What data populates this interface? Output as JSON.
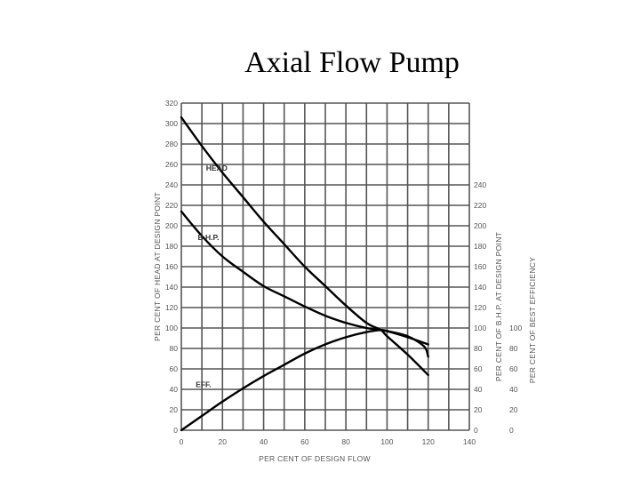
{
  "title": "Axial Flow Pump",
  "chart_data": {
    "type": "line",
    "title": "Axial Flow Pump",
    "xlabel": "PER CENT OF DESIGN FLOW",
    "ylabel_left": "PER CENT OF HEAD AT DESIGN POINT",
    "ylabel_right_bhp": "PER CENT OF B.H.P. AT DESIGN POINT",
    "ylabel_right_eff": "PER CENT OF BEST EFFICIENCY",
    "xlim": [
      0,
      140
    ],
    "ylim": [
      0,
      320
    ],
    "grid": true,
    "x_ticks": [
      0,
      20,
      40,
      60,
      80,
      100,
      120,
      140
    ],
    "y_left_ticks": [
      0,
      20,
      40,
      60,
      80,
      100,
      120,
      140,
      160,
      180,
      200,
      220,
      240,
      260,
      280,
      300,
      320
    ],
    "y_right_bhp_ticks": [
      0,
      20,
      40,
      60,
      80,
      100,
      120,
      140,
      160,
      180,
      200,
      220,
      240
    ],
    "y_right_eff_ticks": [
      0,
      20,
      40,
      60,
      80,
      100
    ],
    "series": [
      {
        "name": "HEAD",
        "label": "HEAD",
        "label_pos": [
          12,
          254
        ],
        "x": [
          0,
          10,
          20,
          30,
          40,
          50,
          60,
          70,
          80,
          90,
          97,
          100,
          110,
          120
        ],
        "values": [
          306,
          278,
          252,
          228,
          204,
          182,
          160,
          141,
          122,
          105,
          98,
          92,
          74,
          54
        ]
      },
      {
        "name": "B.H.P.",
        "label": "B.H.P.",
        "label_pos": [
          8,
          186
        ],
        "x": [
          0,
          10,
          20,
          30,
          40,
          50,
          60,
          70,
          80,
          90,
          97,
          100,
          110,
          120
        ],
        "values": [
          214,
          190,
          170,
          155,
          141,
          131,
          121,
          112,
          105,
          100,
          98,
          97,
          91,
          84
        ]
      },
      {
        "name": "EFF.",
        "label": "EFF.",
        "label_pos": [
          7,
          42
        ],
        "x": [
          0,
          10,
          20,
          30,
          40,
          50,
          60,
          70,
          80,
          90,
          97,
          100,
          110,
          118,
          120
        ],
        "values": [
          0,
          14,
          28,
          41,
          53,
          64,
          75,
          84,
          91,
          96,
          98,
          97,
          92,
          82,
          72
        ]
      }
    ]
  },
  "colors": {
    "grid": "#555555",
    "curve": "#000000",
    "tick_text": "#555555"
  }
}
